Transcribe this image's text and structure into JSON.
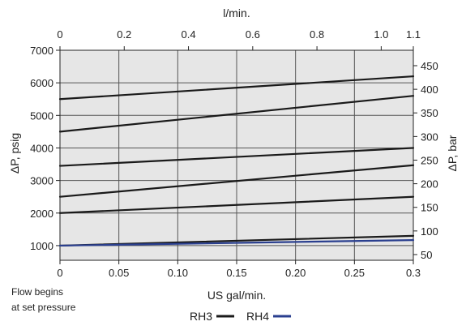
{
  "chart_data": {
    "type": "line",
    "top_axis": {
      "label": "l/min.",
      "range": [
        0,
        1.1
      ],
      "ticks": [
        0,
        0.2,
        0.4,
        0.6,
        0.8,
        1.0,
        1.1
      ],
      "tick_labels": [
        "0",
        "0.2",
        "0.4",
        "0.6",
        "0.8",
        "1.0",
        "1.1"
      ]
    },
    "x_axis": {
      "label": "US gal/min.",
      "range": [
        0,
        0.3
      ],
      "ticks": [
        0,
        0.05,
        0.1,
        0.15,
        0.2,
        0.25,
        0.3
      ],
      "tick_labels": [
        "0",
        "0.05",
        "0.10",
        "0.15",
        "0.20",
        "0.25",
        "0.3"
      ]
    },
    "y_axis": {
      "label": "ΔP, psig",
      "range": [
        550,
        7000
      ],
      "ticks": [
        1000,
        2000,
        3000,
        4000,
        5000,
        6000,
        7000
      ],
      "tick_labels": [
        "1000",
        "2000",
        "3000",
        "4000",
        "5000",
        "6000",
        "7000"
      ]
    },
    "y2_axis": {
      "label": "ΔP, bar",
      "ticks": [
        50,
        100,
        150,
        200,
        250,
        300,
        350,
        400,
        450
      ],
      "tick_labels": [
        "50",
        "100",
        "150",
        "200",
        "250",
        "300",
        "350",
        "400",
        "450"
      ]
    },
    "grid": true,
    "plot_background": "#e6e6e6",
    "annotation": [
      "Flow begins",
      "at set pressure"
    ],
    "legend": {
      "placement": "bottom-center",
      "entries": [
        {
          "name": "RH3",
          "color": "#1a1a1a"
        },
        {
          "name": "RH4",
          "color": "#2a3f8f"
        }
      ]
    },
    "series": [
      {
        "name": "RH3",
        "color": "#1a1a1a",
        "x": [
          0,
          0.3
        ],
        "y": [
          5500,
          6200
        ]
      },
      {
        "name": "RH3",
        "color": "#1a1a1a",
        "x": [
          0,
          0.3
        ],
        "y": [
          4500,
          5600
        ]
      },
      {
        "name": "RH3",
        "color": "#1a1a1a",
        "x": [
          0,
          0.3
        ],
        "y": [
          3450,
          4000
        ]
      },
      {
        "name": "RH3",
        "color": "#1a1a1a",
        "x": [
          0,
          0.3
        ],
        "y": [
          2500,
          3470
        ]
      },
      {
        "name": "RH3",
        "color": "#1a1a1a",
        "x": [
          0,
          0.3
        ],
        "y": [
          2000,
          2500
        ]
      },
      {
        "name": "RH3",
        "color": "#1a1a1a",
        "x": [
          0,
          0.3
        ],
        "y": [
          1000,
          1300
        ]
      },
      {
        "name": "RH4",
        "color": "#2a3f8f",
        "x": [
          0,
          0.3
        ],
        "y": [
          1000,
          1170
        ]
      }
    ]
  }
}
